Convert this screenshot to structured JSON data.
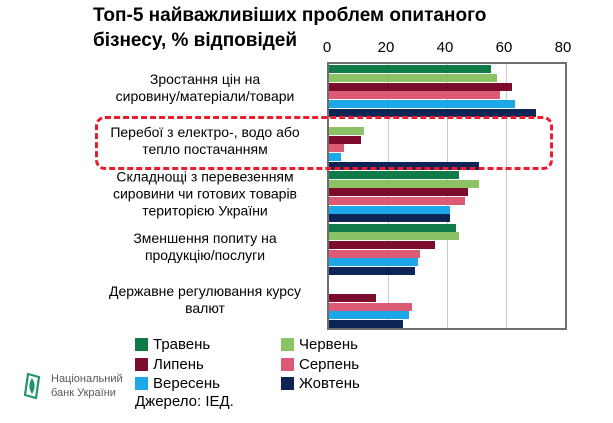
{
  "title": "Топ-5 найважливіших проблем опитаного\nбізнесу, % відповідей",
  "chart_data": {
    "type": "bar",
    "orientation": "horizontal",
    "title": "Топ-5 найважливіших проблем опитаного бізнесу, % відповідей",
    "categories": [
      "Зростання цін на\nсировину/матеріали/товари",
      "Перебої з електро-, водо або\nтепло постачанням",
      "Складнощі з перевезенням\nсировини чи готових товарів\nтериторією України",
      "Зменшення попиту на\nпродукцію/послуги",
      "Державне регулювання курсу\nвалют"
    ],
    "series": [
      {
        "name": "Травень",
        "color": "#0e7b49",
        "values": [
          55,
          null,
          44,
          43,
          null
        ]
      },
      {
        "name": "Червень",
        "color": "#8cc266",
        "values": [
          57,
          12,
          51,
          44,
          null
        ]
      },
      {
        "name": "Липень",
        "color": "#7b0c2d",
        "values": [
          62,
          11,
          47,
          36,
          16
        ]
      },
      {
        "name": "Серпень",
        "color": "#dd5a75",
        "values": [
          58,
          5,
          46,
          31,
          28
        ]
      },
      {
        "name": "Вересень",
        "color": "#1ca7e8",
        "values": [
          63,
          4,
          41,
          30,
          27
        ]
      },
      {
        "name": "Жовтень",
        "color": "#0d2457",
        "values": [
          70,
          51,
          41,
          29,
          25
        ]
      }
    ],
    "xlim": [
      0,
      80
    ],
    "xticks": [
      0,
      20,
      40,
      60,
      80
    ],
    "grid": true,
    "legend_position": "bottom",
    "highlight": {
      "category_index": 1,
      "style": "red-dashed-box",
      "color": "#ec1c2e"
    }
  },
  "source": "Джерело: ІЕД.",
  "logo": {
    "text": "Національний\nбанк України"
  }
}
